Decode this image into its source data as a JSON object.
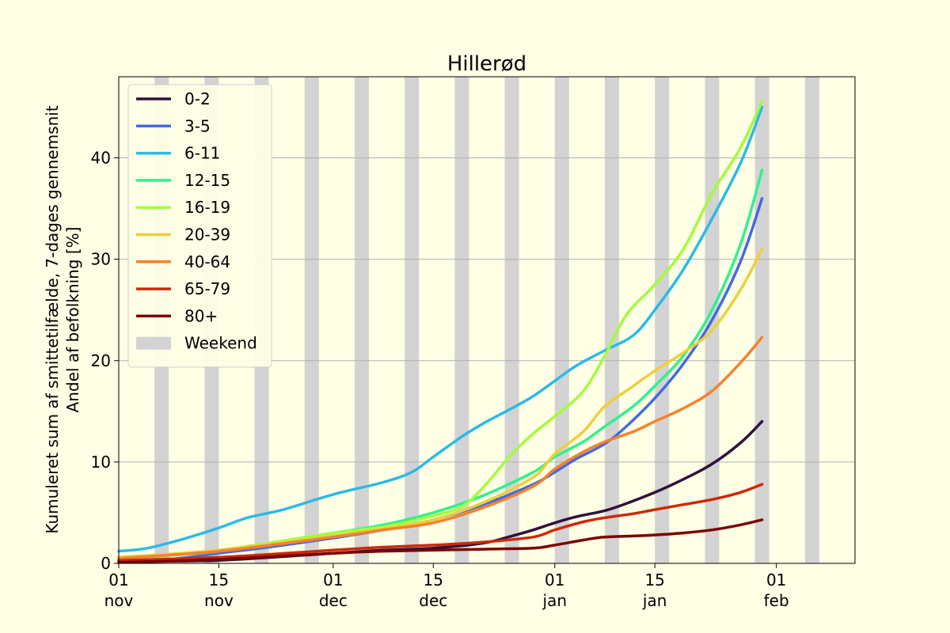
{
  "chart_data": {
    "type": "line",
    "title": "Hillerød",
    "ylabel_line1": "Kumuleret sum af smittetilfælde, 7-dages gennemsnit",
    "ylabel_line2": "Andel af befolkning [%]",
    "ylim": [
      0,
      48
    ],
    "yticks": [
      0,
      10,
      20,
      30,
      40
    ],
    "x_range": [
      "2021-11-01",
      "2022-02-12"
    ],
    "xticks": [
      {
        "date": "2021-11-01",
        "day": "01",
        "month": "nov"
      },
      {
        "date": "2021-11-15",
        "day": "15",
        "month": "nov"
      },
      {
        "date": "2021-12-01",
        "day": "01",
        "month": "dec"
      },
      {
        "date": "2021-12-15",
        "day": "15",
        "month": "dec"
      },
      {
        "date": "2022-01-01",
        "day": "01",
        "month": "jan"
      },
      {
        "date": "2022-01-15",
        "day": "15",
        "month": "jan"
      },
      {
        "date": "2022-02-01",
        "day": "01",
        "month": "feb"
      }
    ],
    "grid": "horizontal",
    "legend_position": "top-left",
    "weekend_label": "Weekend",
    "weekend_color": "#d3d3d3",
    "weekends": [
      "2021-11-06",
      "2021-11-13",
      "2021-11-20",
      "2021-11-27",
      "2021-12-04",
      "2021-12-11",
      "2021-12-18",
      "2021-12-25",
      "2022-01-01",
      "2022-01-08",
      "2022-01-15",
      "2022-01-22",
      "2022-01-29",
      "2022-02-05"
    ],
    "series": [
      {
        "name": "0-2",
        "color": "#30123b",
        "points": [
          [
            "2021-11-01",
            0.2
          ],
          [
            "2021-11-15",
            0.3
          ],
          [
            "2021-12-01",
            1.0
          ],
          [
            "2021-12-08",
            1.3
          ],
          [
            "2021-12-15",
            1.5
          ],
          [
            "2021-12-22",
            2.0
          ],
          [
            "2021-12-26",
            2.7
          ],
          [
            "2021-12-29",
            3.3
          ],
          [
            "2022-01-01",
            4.0
          ],
          [
            "2022-01-04",
            4.6
          ],
          [
            "2022-01-08",
            5.2
          ],
          [
            "2022-01-11",
            5.9
          ],
          [
            "2022-01-15",
            7.0
          ],
          [
            "2022-01-19",
            8.3
          ],
          [
            "2022-01-23",
            9.8
          ],
          [
            "2022-01-27",
            11.9
          ],
          [
            "2022-01-30",
            14.0
          ]
        ]
      },
      {
        "name": "3-5",
        "color": "#4669e0",
        "points": [
          [
            "2021-11-01",
            0.2
          ],
          [
            "2021-11-08",
            0.4
          ],
          [
            "2021-11-15",
            1.0
          ],
          [
            "2021-11-22",
            1.6
          ],
          [
            "2021-12-01",
            2.5
          ],
          [
            "2021-12-08",
            3.3
          ],
          [
            "2021-12-15",
            4.3
          ],
          [
            "2021-12-22",
            5.8
          ],
          [
            "2021-12-29",
            7.8
          ],
          [
            "2022-01-01",
            9.0
          ],
          [
            "2022-01-04",
            10.3
          ],
          [
            "2022-01-08",
            11.8
          ],
          [
            "2022-01-11",
            13.5
          ],
          [
            "2022-01-15",
            16.3
          ],
          [
            "2022-01-19",
            19.7
          ],
          [
            "2022-01-23",
            24.0
          ],
          [
            "2022-01-27",
            29.8
          ],
          [
            "2022-01-30",
            36.0
          ]
        ]
      },
      {
        "name": "6-11",
        "color": "#2bbae6",
        "points": [
          [
            "2021-11-01",
            1.2
          ],
          [
            "2021-11-05",
            1.5
          ],
          [
            "2021-11-10",
            2.4
          ],
          [
            "2021-11-15",
            3.5
          ],
          [
            "2021-11-19",
            4.5
          ],
          [
            "2021-11-24",
            5.3
          ],
          [
            "2021-12-01",
            6.8
          ],
          [
            "2021-12-08",
            8.0
          ],
          [
            "2021-12-12",
            9.0
          ],
          [
            "2021-12-15",
            10.5
          ],
          [
            "2021-12-19",
            12.5
          ],
          [
            "2021-12-22",
            13.8
          ],
          [
            "2021-12-26",
            15.3
          ],
          [
            "2021-12-29",
            16.5
          ],
          [
            "2022-01-01",
            18.0
          ],
          [
            "2022-01-04",
            19.5
          ],
          [
            "2022-01-08",
            21.0
          ],
          [
            "2022-01-12",
            22.5
          ],
          [
            "2022-01-15",
            25.0
          ],
          [
            "2022-01-19",
            29.0
          ],
          [
            "2022-01-23",
            34.0
          ],
          [
            "2022-01-27",
            39.5
          ],
          [
            "2022-01-30",
            45.0
          ]
        ]
      },
      {
        "name": "12-15",
        "color": "#32f08c",
        "points": [
          [
            "2021-11-01",
            0.5
          ],
          [
            "2021-11-15",
            1.2
          ],
          [
            "2021-12-01",
            3.0
          ],
          [
            "2021-12-08",
            3.8
          ],
          [
            "2021-12-15",
            5.0
          ],
          [
            "2021-12-22",
            6.7
          ],
          [
            "2021-12-29",
            9.0
          ],
          [
            "2022-01-01",
            10.5
          ],
          [
            "2022-01-05",
            12.0
          ],
          [
            "2022-01-08",
            13.5
          ],
          [
            "2022-01-12",
            15.5
          ],
          [
            "2022-01-15",
            17.5
          ],
          [
            "2022-01-19",
            20.5
          ],
          [
            "2022-01-23",
            25.0
          ],
          [
            "2022-01-27",
            31.5
          ],
          [
            "2022-01-30",
            38.8
          ]
        ]
      },
      {
        "name": "16-19",
        "color": "#a4fc3c",
        "points": [
          [
            "2021-11-01",
            0.5
          ],
          [
            "2021-11-15",
            1.3
          ],
          [
            "2021-12-01",
            3.0
          ],
          [
            "2021-12-08",
            3.6
          ],
          [
            "2021-12-15",
            4.7
          ],
          [
            "2021-12-19",
            5.6
          ],
          [
            "2021-12-22",
            7.5
          ],
          [
            "2021-12-26",
            10.8
          ],
          [
            "2021-12-29",
            12.8
          ],
          [
            "2022-01-01",
            14.5
          ],
          [
            "2022-01-05",
            17.0
          ],
          [
            "2022-01-08",
            20.5
          ],
          [
            "2022-01-11",
            24.5
          ],
          [
            "2022-01-15",
            27.5
          ],
          [
            "2022-01-19",
            31.0
          ],
          [
            "2022-01-23",
            36.5
          ],
          [
            "2022-01-27",
            41.0
          ],
          [
            "2022-01-30",
            45.6
          ]
        ]
      },
      {
        "name": "20-39",
        "color": "#eecf3a",
        "points": [
          [
            "2021-11-01",
            0.6
          ],
          [
            "2021-11-15",
            1.3
          ],
          [
            "2021-12-01",
            2.7
          ],
          [
            "2021-12-08",
            3.4
          ],
          [
            "2021-12-15",
            4.3
          ],
          [
            "2021-12-22",
            6.0
          ],
          [
            "2021-12-29",
            8.5
          ],
          [
            "2022-01-01",
            10.8
          ],
          [
            "2022-01-05",
            13.0
          ],
          [
            "2022-01-08",
            15.5
          ],
          [
            "2022-01-12",
            17.5
          ],
          [
            "2022-01-15",
            19.0
          ],
          [
            "2022-01-19",
            20.8
          ],
          [
            "2022-01-23",
            23.0
          ],
          [
            "2022-01-27",
            27.0
          ],
          [
            "2022-01-30",
            31.0
          ]
        ]
      },
      {
        "name": "40-64",
        "color": "#f5822a",
        "points": [
          [
            "2021-11-01",
            0.5
          ],
          [
            "2021-11-15",
            1.2
          ],
          [
            "2021-12-01",
            2.6
          ],
          [
            "2021-12-08",
            3.3
          ],
          [
            "2021-12-15",
            4.0
          ],
          [
            "2021-12-22",
            5.5
          ],
          [
            "2021-12-29",
            7.6
          ],
          [
            "2022-01-01",
            9.3
          ],
          [
            "2022-01-05",
            11.0
          ],
          [
            "2022-01-08",
            12.0
          ],
          [
            "2022-01-12",
            13.0
          ],
          [
            "2022-01-15",
            14.0
          ],
          [
            "2022-01-19",
            15.3
          ],
          [
            "2022-01-23",
            17.0
          ],
          [
            "2022-01-27",
            19.8
          ],
          [
            "2022-01-30",
            22.3
          ]
        ]
      },
      {
        "name": "65-79",
        "color": "#cb2a04",
        "points": [
          [
            "2021-11-01",
            0.3
          ],
          [
            "2021-11-15",
            0.6
          ],
          [
            "2021-12-01",
            1.3
          ],
          [
            "2021-12-08",
            1.6
          ],
          [
            "2021-12-15",
            1.8
          ],
          [
            "2021-12-22",
            2.1
          ],
          [
            "2021-12-29",
            2.6
          ],
          [
            "2022-01-01",
            3.3
          ],
          [
            "2022-01-05",
            4.1
          ],
          [
            "2022-01-08",
            4.5
          ],
          [
            "2022-01-12",
            4.9
          ],
          [
            "2022-01-15",
            5.3
          ],
          [
            "2022-01-19",
            5.8
          ],
          [
            "2022-01-23",
            6.3
          ],
          [
            "2022-01-27",
            7.0
          ],
          [
            "2022-01-30",
            7.8
          ]
        ]
      },
      {
        "name": "80+",
        "color": "#7a0403",
        "points": [
          [
            "2021-11-01",
            0.1
          ],
          [
            "2021-11-15",
            0.4
          ],
          [
            "2021-12-01",
            1.0
          ],
          [
            "2021-12-08",
            1.2
          ],
          [
            "2021-12-15",
            1.3
          ],
          [
            "2021-12-22",
            1.4
          ],
          [
            "2021-12-29",
            1.5
          ],
          [
            "2022-01-01",
            1.8
          ],
          [
            "2022-01-05",
            2.3
          ],
          [
            "2022-01-08",
            2.6
          ],
          [
            "2022-01-12",
            2.7
          ],
          [
            "2022-01-15",
            2.8
          ],
          [
            "2022-01-19",
            3.0
          ],
          [
            "2022-01-23",
            3.3
          ],
          [
            "2022-01-27",
            3.8
          ],
          [
            "2022-01-30",
            4.3
          ]
        ]
      }
    ]
  }
}
